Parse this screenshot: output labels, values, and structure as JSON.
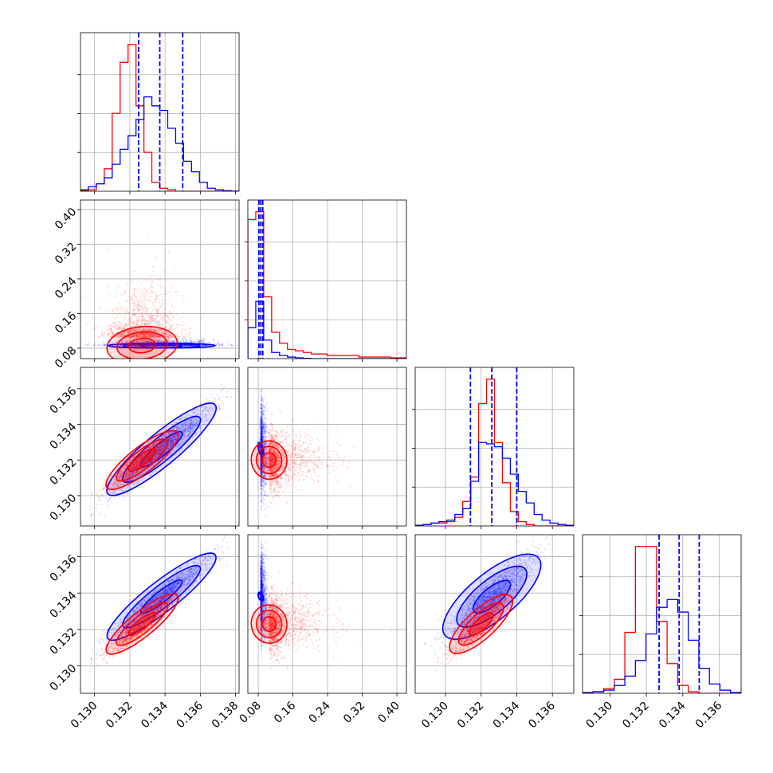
{
  "chart_data": {
    "type": "corner",
    "colors": {
      "red": "#ff0000",
      "blue": "#0000ff",
      "grid": "#b0b0b0"
    },
    "series": [
      {
        "color": "red"
      },
      {
        "color": "blue"
      }
    ],
    "grid": true,
    "legend": "none",
    "parameters": [
      {
        "range": [
          0.1292,
          0.1382
        ],
        "ticks": [
          "0.130",
          "0.132",
          "0.134",
          "0.136",
          "0.138"
        ],
        "tick_values": [
          0.13,
          0.132,
          0.134,
          0.136,
          0.138
        ]
      },
      {
        "range": [
          0.056,
          0.422
        ],
        "ticks": [
          "0.08",
          "0.16",
          "0.24",
          "0.32",
          "0.40"
        ],
        "tick_values": [
          0.08,
          0.16,
          0.24,
          0.32,
          0.4
        ]
      },
      {
        "range": [
          0.1283,
          0.1372
        ],
        "ticks": [
          "0.130",
          "0.132",
          "0.134",
          "0.136"
        ],
        "tick_values": [
          0.13,
          0.132,
          0.134,
          0.136
        ]
      },
      {
        "range": [
          0.1285,
          0.1372
        ],
        "ticks": [
          "0.130",
          "0.132",
          "0.134",
          "0.136"
        ],
        "tick_values": [
          0.13,
          0.132,
          0.134,
          0.136
        ]
      }
    ],
    "blue_quantiles": [
      [
        0.1325,
        0.1337,
        0.135
      ],
      [
        0.0815,
        0.086,
        0.0905
      ],
      [
        0.1314,
        0.1326,
        0.134
      ],
      [
        0.1327,
        0.1338,
        0.1349
      ]
    ],
    "marginals": [
      {
        "red": [
          0.004,
          0.01,
          0.05,
          0.15,
          0.52,
          0.86,
          0.98,
          0.57,
          0.26,
          0.06,
          0.02,
          0.01,
          0,
          0,
          0,
          0,
          0,
          0,
          0,
          0
        ],
        "blue": [
          0.01,
          0.03,
          0.05,
          0.09,
          0.18,
          0.28,
          0.37,
          0.48,
          0.63,
          0.57,
          0.54,
          0.42,
          0.32,
          0.2,
          0.13,
          0.06,
          0.02,
          0.01,
          0.004,
          0.001
        ]
      },
      {
        "red": [
          0.9,
          0.95,
          0.4,
          0.17,
          0.1,
          0.06,
          0.05,
          0.04,
          0.03,
          0.03,
          0.02,
          0.02,
          0.02,
          0.02,
          0.01,
          0.01,
          0.01,
          0.01,
          0.005,
          0.005
        ],
        "blue": [
          0.2,
          0.37,
          0.12,
          0.04,
          0.02,
          0.01,
          0.005,
          0.002,
          0,
          0,
          0,
          0,
          0,
          0,
          0,
          0,
          0,
          0,
          0,
          0
        ]
      },
      {
        "red": [
          0,
          0.01,
          0.02,
          0.02,
          0.03,
          0.06,
          0.17,
          0.34,
          0.85,
          1.02,
          0.58,
          0.3,
          0.1,
          0.03,
          0.01,
          0,
          0,
          0,
          0,
          0
        ],
        "blue": [
          0.005,
          0.01,
          0.02,
          0.03,
          0.04,
          0.08,
          0.12,
          0.31,
          0.58,
          0.57,
          0.55,
          0.47,
          0.36,
          0.24,
          0.16,
          0.08,
          0.04,
          0.02,
          0.01,
          0.005
        ]
      },
      {
        "red": [
          0.002,
          0.01,
          0.03,
          0.09,
          0.39,
          0.94,
          0.94,
          0.46,
          0.19,
          0.05,
          0.01,
          0,
          0,
          0,
          0
        ],
        "blue": [
          0.005,
          0.01,
          0.02,
          0.05,
          0.11,
          0.21,
          0.38,
          0.55,
          0.6,
          0.52,
          0.34,
          0.16,
          0.06,
          0.02,
          0.005
        ]
      }
    ],
    "scatter_models": {
      "blue": {
        "mean": [
          0.1338,
          0.086,
          0.1326,
          0.1338
        ],
        "sd": [
          0.00145,
          0.0058,
          0.00125,
          0.00115
        ],
        "corr": {
          "0-2": 0.95,
          "0-3": 0.95,
          "2-3": 0.88,
          "0-1": 0.0,
          "1-2": -0.15,
          "1-3": -0.1
        }
      },
      "red": {
        "mean": [
          0.1327,
          0.105,
          0.132,
          0.1323
        ],
        "sd": [
          0.00095,
          0.055,
          0.0008,
          0.0008
        ],
        "corr": {
          "0-2": 0.92,
          "0-3": 0.93,
          "2-3": 0.9,
          "0-1": 0.2,
          "1-2": 0.1,
          "1-3": 0.1
        }
      }
    }
  }
}
